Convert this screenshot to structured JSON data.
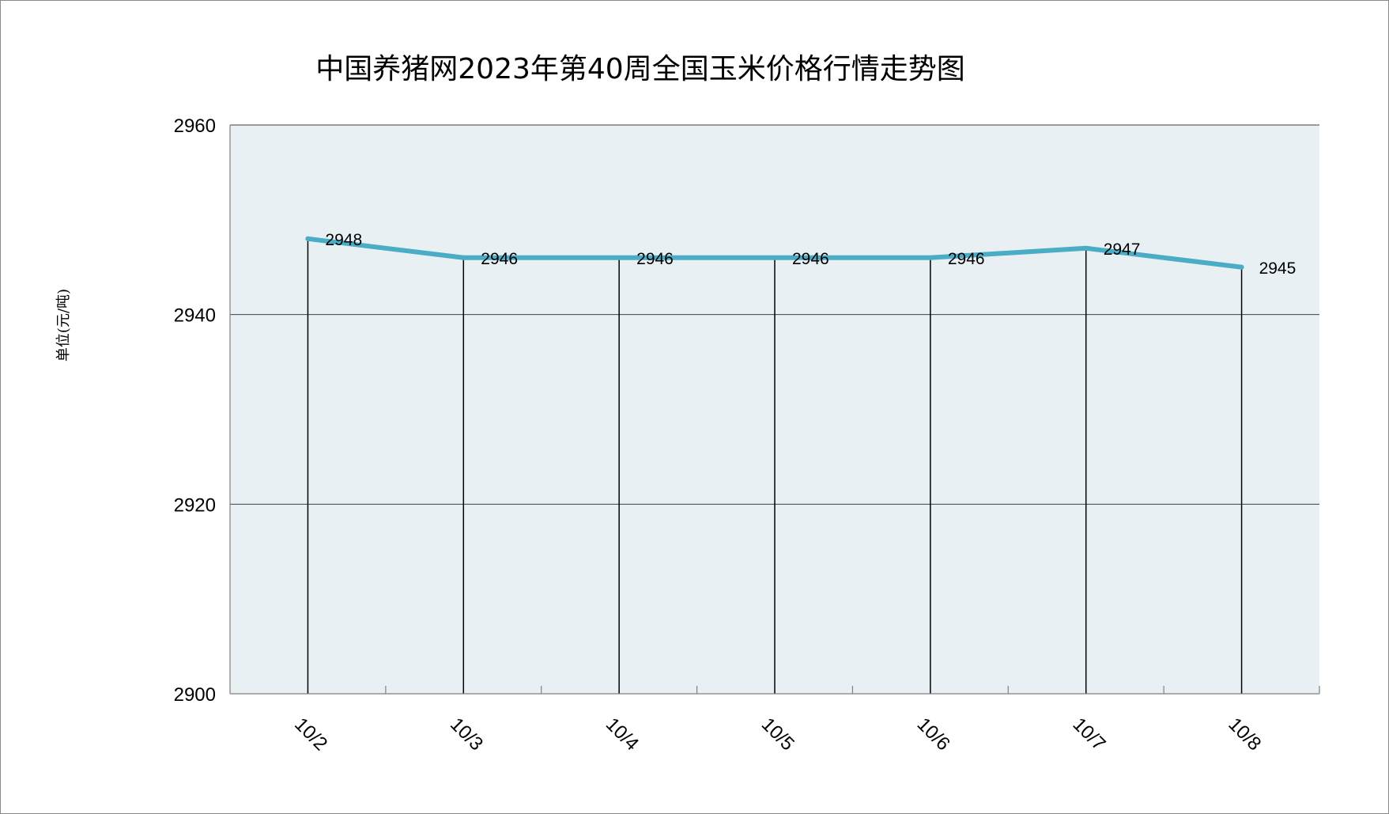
{
  "chart_data": {
    "type": "line",
    "title": "中国养猪网2023年第40周全国玉米价格行情走势图",
    "ylabel": "单位(元/吨)",
    "xlabel": "",
    "categories": [
      "10/2",
      "10/3",
      "10/4",
      "10/5",
      "10/6",
      "10/7",
      "10/8"
    ],
    "series": [
      {
        "values": [
          2948,
          2946,
          2946,
          2946,
          2946,
          2947,
          2945
        ]
      }
    ],
    "ylim": [
      2900,
      2960
    ],
    "yticks": [
      2900,
      2920,
      2940,
      2960
    ],
    "grid": true,
    "drop_lines": true,
    "data_labels": true,
    "legend": "none",
    "colors": {
      "line": "#4BACC6",
      "plot_background": "#E8F0F4",
      "gridline": "#404040",
      "drop_line": "#000000"
    }
  }
}
